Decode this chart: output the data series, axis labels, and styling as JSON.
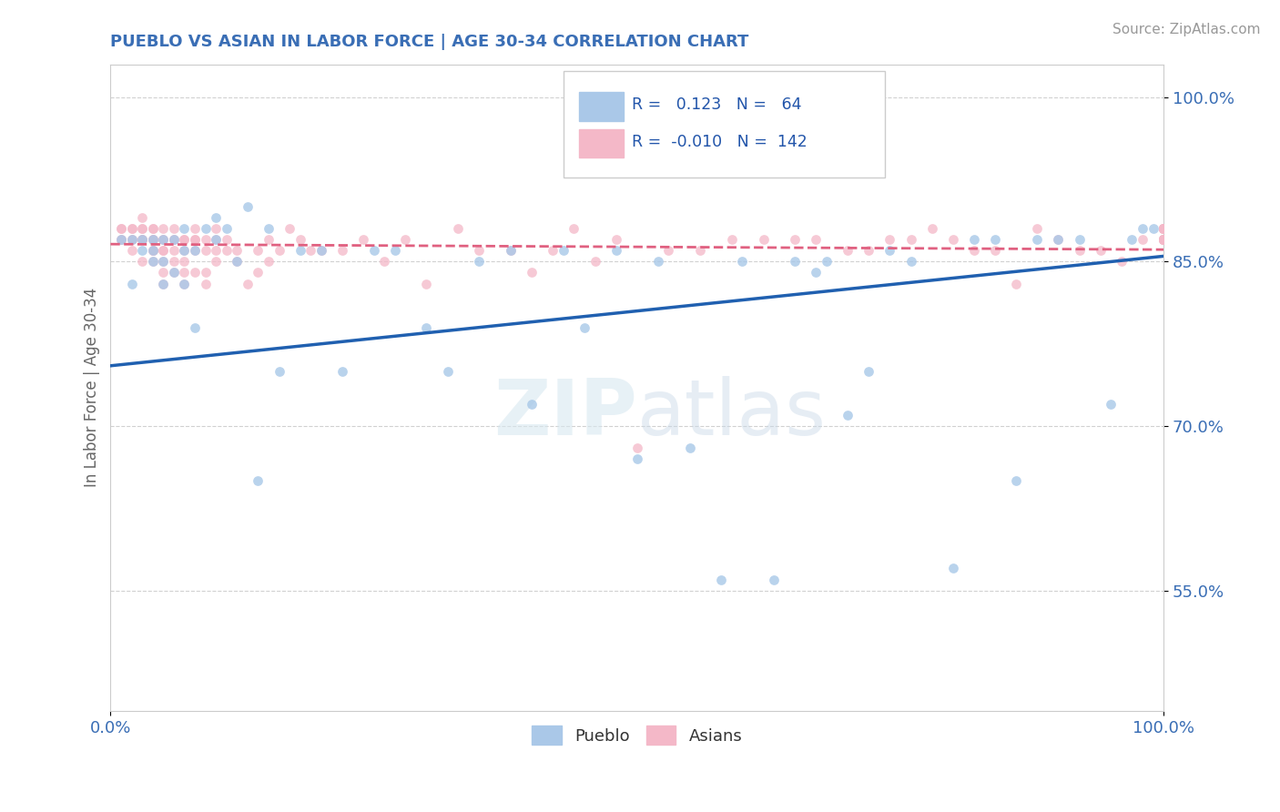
{
  "title": "PUEBLO VS ASIAN IN LABOR FORCE | AGE 30-34 CORRELATION CHART",
  "source": "Source: ZipAtlas.com",
  "ylabel": "In Labor Force | Age 30-34",
  "xlim": [
    0.0,
    1.0
  ],
  "ylim": [
    0.44,
    1.03
  ],
  "ytick_vals": [
    0.55,
    0.7,
    0.85,
    1.0
  ],
  "ytick_labels": [
    "55.0%",
    "70.0%",
    "85.0%",
    "100.0%"
  ],
  "xtick_labels": [
    "0.0%",
    "100.0%"
  ],
  "legend_R_pueblo": "0.123",
  "legend_N_pueblo": "64",
  "legend_R_asian": "-0.010",
  "legend_N_asian": "142",
  "pueblo_color": "#a8c8e8",
  "asian_color": "#f4b8c8",
  "trend_pueblo_color": "#2060b0",
  "trend_asian_color": "#e06080",
  "background_color": "#ffffff",
  "pueblo_x": [
    0.01,
    0.02,
    0.02,
    0.03,
    0.03,
    0.04,
    0.04,
    0.04,
    0.05,
    0.05,
    0.05,
    0.06,
    0.06,
    0.07,
    0.07,
    0.07,
    0.08,
    0.08,
    0.09,
    0.1,
    0.1,
    0.11,
    0.12,
    0.13,
    0.14,
    0.15,
    0.16,
    0.18,
    0.2,
    0.22,
    0.25,
    0.27,
    0.3,
    0.32,
    0.35,
    0.38,
    0.4,
    0.43,
    0.45,
    0.48,
    0.5,
    0.52,
    0.55,
    0.58,
    0.6,
    0.63,
    0.65,
    0.67,
    0.68,
    0.7,
    0.72,
    0.74,
    0.76,
    0.8,
    0.82,
    0.84,
    0.86,
    0.88,
    0.9,
    0.92,
    0.95,
    0.97,
    0.98,
    0.99
  ],
  "pueblo_y": [
    0.87,
    0.87,
    0.83,
    0.86,
    0.87,
    0.85,
    0.86,
    0.87,
    0.83,
    0.85,
    0.87,
    0.84,
    0.87,
    0.83,
    0.86,
    0.88,
    0.86,
    0.79,
    0.88,
    0.89,
    0.87,
    0.88,
    0.85,
    0.9,
    0.65,
    0.88,
    0.75,
    0.86,
    0.86,
    0.75,
    0.86,
    0.86,
    0.79,
    0.75,
    0.85,
    0.86,
    0.72,
    0.86,
    0.79,
    0.86,
    0.67,
    0.85,
    0.68,
    0.56,
    0.85,
    0.56,
    0.85,
    0.84,
    0.85,
    0.71,
    0.75,
    0.86,
    0.85,
    0.57,
    0.87,
    0.87,
    0.65,
    0.87,
    0.87,
    0.87,
    0.72,
    0.87,
    0.88,
    0.88
  ],
  "asian_x": [
    0.01,
    0.01,
    0.01,
    0.01,
    0.02,
    0.02,
    0.02,
    0.02,
    0.02,
    0.03,
    0.03,
    0.03,
    0.03,
    0.03,
    0.03,
    0.03,
    0.04,
    0.04,
    0.04,
    0.04,
    0.04,
    0.04,
    0.04,
    0.04,
    0.04,
    0.05,
    0.05,
    0.05,
    0.05,
    0.05,
    0.05,
    0.05,
    0.05,
    0.06,
    0.06,
    0.06,
    0.06,
    0.06,
    0.06,
    0.07,
    0.07,
    0.07,
    0.07,
    0.07,
    0.07,
    0.08,
    0.08,
    0.08,
    0.08,
    0.08,
    0.09,
    0.09,
    0.09,
    0.09,
    0.1,
    0.1,
    0.1,
    0.1,
    0.11,
    0.11,
    0.12,
    0.12,
    0.13,
    0.14,
    0.14,
    0.15,
    0.15,
    0.16,
    0.17,
    0.18,
    0.19,
    0.2,
    0.22,
    0.24,
    0.26,
    0.28,
    0.3,
    0.33,
    0.35,
    0.38,
    0.4,
    0.42,
    0.44,
    0.46,
    0.48,
    0.5,
    0.53,
    0.56,
    0.59,
    0.62,
    0.65,
    0.67,
    0.7,
    0.72,
    0.74,
    0.76,
    0.78,
    0.8,
    0.82,
    0.84,
    0.86,
    0.88,
    0.9,
    0.92,
    0.94,
    0.96,
    0.98,
    1.0,
    1.0,
    1.0,
    1.0,
    1.0,
    1.0,
    1.0,
    1.0,
    1.0,
    1.0,
    1.0,
    1.0,
    1.0,
    1.0,
    1.0,
    1.0,
    1.0,
    1.0,
    1.0,
    1.0,
    1.0,
    1.0,
    1.0,
    1.0,
    1.0,
    1.0,
    1.0,
    1.0,
    1.0,
    1.0,
    1.0,
    1.0
  ],
  "asian_y": [
    0.88,
    0.88,
    0.87,
    0.87,
    0.87,
    0.88,
    0.88,
    0.87,
    0.86,
    0.85,
    0.87,
    0.88,
    0.87,
    0.87,
    0.88,
    0.89,
    0.85,
    0.86,
    0.86,
    0.87,
    0.87,
    0.87,
    0.88,
    0.88,
    0.86,
    0.84,
    0.85,
    0.86,
    0.86,
    0.87,
    0.87,
    0.88,
    0.83,
    0.84,
    0.85,
    0.86,
    0.87,
    0.87,
    0.88,
    0.84,
    0.85,
    0.86,
    0.87,
    0.87,
    0.83,
    0.84,
    0.86,
    0.87,
    0.87,
    0.88,
    0.84,
    0.86,
    0.87,
    0.83,
    0.85,
    0.86,
    0.87,
    0.88,
    0.86,
    0.87,
    0.85,
    0.86,
    0.83,
    0.84,
    0.86,
    0.85,
    0.87,
    0.86,
    0.88,
    0.87,
    0.86,
    0.86,
    0.86,
    0.87,
    0.85,
    0.87,
    0.83,
    0.88,
    0.86,
    0.86,
    0.84,
    0.86,
    0.88,
    0.85,
    0.87,
    0.68,
    0.86,
    0.86,
    0.87,
    0.87,
    0.87,
    0.87,
    0.86,
    0.86,
    0.87,
    0.87,
    0.88,
    0.87,
    0.86,
    0.86,
    0.83,
    0.88,
    0.87,
    0.86,
    0.86,
    0.85,
    0.87,
    0.87,
    0.87,
    0.87,
    0.87,
    0.88,
    0.88,
    0.88,
    0.88,
    0.88,
    0.87,
    0.87,
    0.87,
    0.87,
    0.87,
    0.88,
    0.88,
    0.88,
    0.88,
    0.88,
    0.88,
    0.87,
    0.88,
    0.88,
    0.87,
    0.87,
    0.87,
    0.87,
    0.88,
    0.87,
    0.87,
    0.87,
    0.88
  ],
  "trend_pueblo_x0": 0.0,
  "trend_pueblo_y0": 0.755,
  "trend_pueblo_x1": 1.0,
  "trend_pueblo_y1": 0.855,
  "trend_asian_x0": 0.0,
  "trend_asian_y0": 0.866,
  "trend_asian_x1": 1.0,
  "trend_asian_y1": 0.861
}
